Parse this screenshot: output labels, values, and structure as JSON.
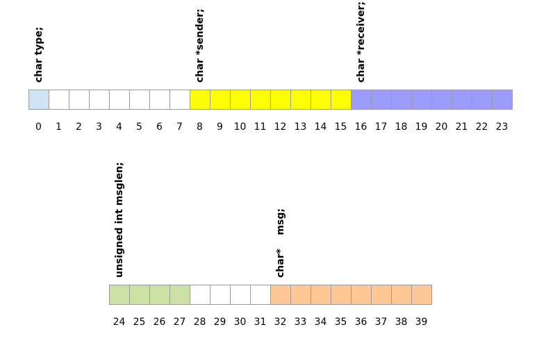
{
  "colors": {
    "type": "#cfe3f5",
    "sender": "#ffff00",
    "receiver": "#9c9cff",
    "msglen": "#cde0a6",
    "msg": "#ffc896",
    "empty": "#ffffff",
    "border": "#9a9a9a"
  },
  "rows": [
    {
      "start": 0,
      "end": 23,
      "fills": [
        "type",
        "empty",
        "empty",
        "empty",
        "empty",
        "empty",
        "empty",
        "empty",
        "sender",
        "sender",
        "sender",
        "sender",
        "sender",
        "sender",
        "sender",
        "sender",
        "receiver",
        "receiver",
        "receiver",
        "receiver",
        "receiver",
        "receiver",
        "receiver",
        "receiver"
      ],
      "labels": [
        {
          "text": "char type;",
          "at": 0
        },
        {
          "text": "char *sender;",
          "at": 8
        },
        {
          "text": "char *receiver;",
          "at": 16
        }
      ]
    },
    {
      "start": 24,
      "end": 39,
      "fills": [
        "msglen",
        "msglen",
        "msglen",
        "msglen",
        "empty",
        "empty",
        "empty",
        "empty",
        "msg",
        "msg",
        "msg",
        "msg",
        "msg",
        "msg",
        "msg",
        "msg"
      ],
      "labels": [
        {
          "text": "unsigned int msglen;",
          "at": 24
        },
        {
          "text": "char*    msg;",
          "at": 32
        }
      ]
    }
  ]
}
